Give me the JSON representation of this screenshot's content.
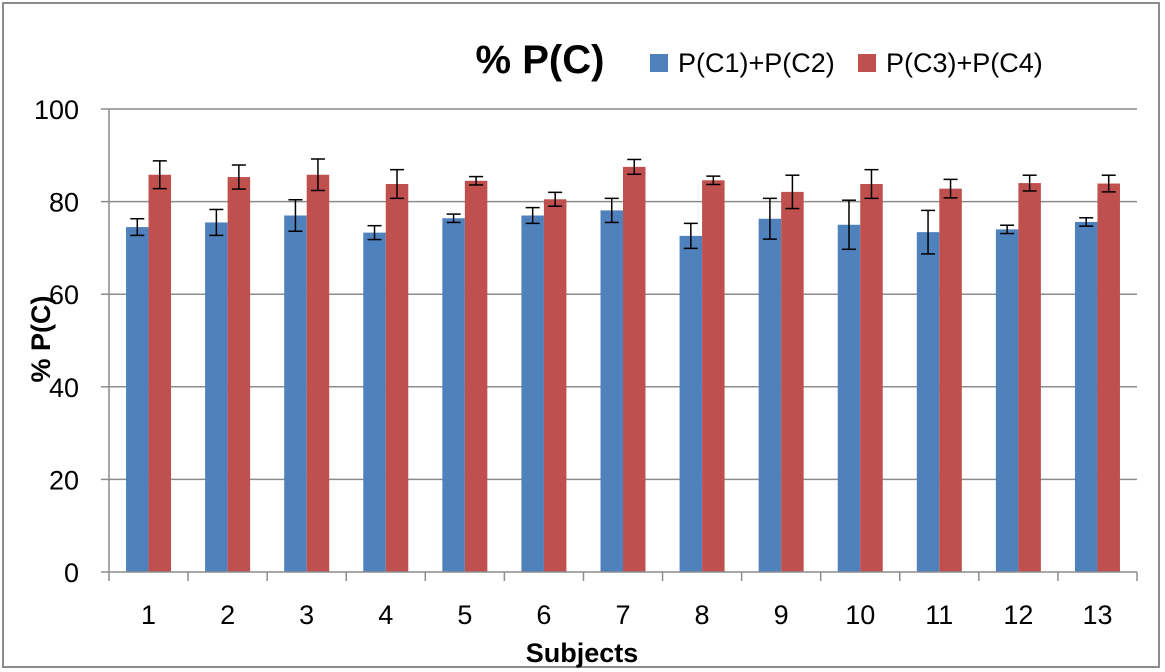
{
  "chart_data": {
    "type": "bar",
    "title": "% P(C)",
    "xlabel": "Subjects",
    "ylabel": "% P(C)",
    "ylim": [
      0,
      100
    ],
    "yticks": [
      0,
      20,
      40,
      60,
      80,
      100
    ],
    "grid": true,
    "legend_position": "top-right",
    "categories": [
      "1",
      "2",
      "3",
      "4",
      "5",
      "6",
      "7",
      "8",
      "9",
      "10",
      "11",
      "12",
      "13"
    ],
    "series": [
      {
        "name": "P(C1)+P(C2)",
        "color": "#4f81bd",
        "values": [
          74.5,
          75.5,
          77,
          73.3,
          76.4,
          77,
          78.1,
          72.6,
          76.3,
          75,
          73.4,
          74,
          75.6
        ],
        "errors": [
          1.8,
          2.8,
          3.4,
          1.5,
          0.9,
          1.7,
          2.6,
          2.7,
          4.4,
          5.3,
          4.7,
          0.9,
          0.9
        ]
      },
      {
        "name": "P(C3)+P(C4)",
        "color": "#c0504d",
        "values": [
          85.8,
          85.3,
          85.8,
          83.8,
          84.5,
          80.5,
          87.5,
          84.6,
          82.1,
          83.8,
          82.8,
          84,
          83.9
        ],
        "errors": [
          3,
          2.6,
          3.4,
          3.1,
          0.9,
          1.5,
          1.6,
          0.9,
          3.6,
          3.1,
          2,
          1.7,
          1.8
        ]
      }
    ]
  }
}
